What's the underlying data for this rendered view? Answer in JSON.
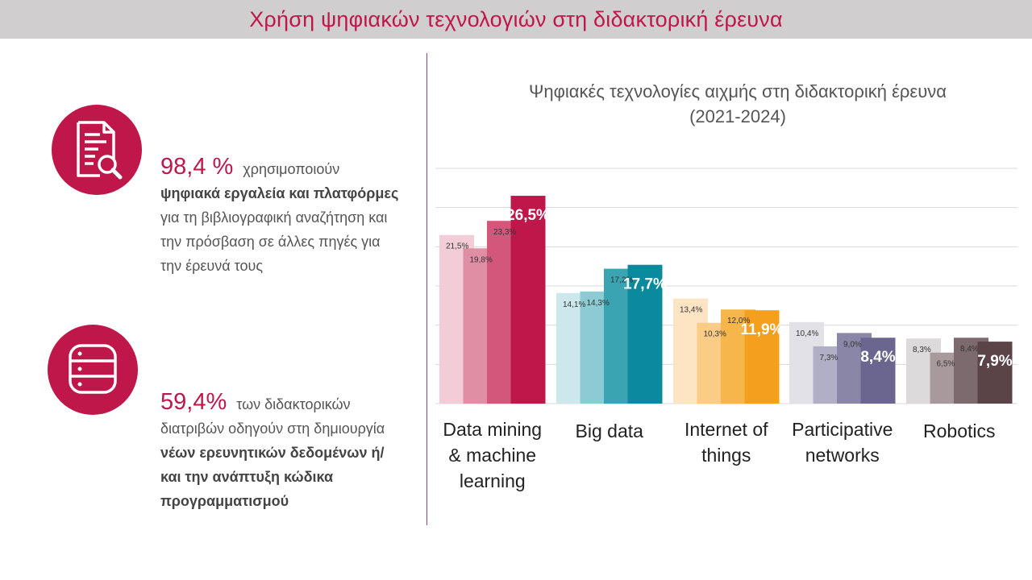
{
  "header": {
    "title": "Χρήση ψηφιακών τεχνολογιών στη διδακτορική έρευνα"
  },
  "stats": [
    {
      "icon": "document-search-icon",
      "value": "98,4 %",
      "parts": [
        {
          "text": "χρησιμοποιούν ",
          "bold": false
        },
        {
          "text": "ψηφιακά εργαλεία και πλατφόρμες",
          "bold": true
        },
        {
          "text": " για τη βιβλιογραφική αναζήτηση και την πρόσβαση σε άλλες πηγές για την έρευνά τους",
          "bold": false
        }
      ]
    },
    {
      "icon": "database-icon",
      "value": "59,4%",
      "parts": [
        {
          "text": "των διδακτορικών διατριβών οδηγούν στη δημιουργία ",
          "bold": false
        },
        {
          "text": "νέων ερευνητικών δεδομένων ή/και την ανάπτυξη κώδικα προγραμματισμού",
          "bold": true
        }
      ]
    }
  ],
  "chart_data": {
    "type": "bar",
    "title": "Ψηφιακές τεχνολογίες αιχμής στη διδακτορική έρευνα",
    "subtitle": "(2021-2024)",
    "categories": [
      "Data mining & machine learning",
      "Big data",
      "Internet of things",
      "Participative networks",
      "Robotics"
    ],
    "category_lines": [
      [
        "Data mining",
        "& machine",
        "learning"
      ],
      [
        "Big data"
      ],
      [
        "Internet of",
        "things"
      ],
      [
        "Participative",
        "networks"
      ],
      [
        "Robotics"
      ]
    ],
    "series": [
      {
        "values": [
          21.5,
          14.1,
          13.4,
          10.4,
          8.3
        ]
      },
      {
        "values": [
          19.8,
          14.3,
          10.3,
          7.3,
          6.5
        ]
      },
      {
        "values": [
          23.3,
          17.2,
          12.0,
          9.0,
          8.4
        ]
      },
      {
        "values": [
          26.5,
          17.7,
          11.9,
          8.4,
          7.9
        ]
      }
    ],
    "labels": [
      [
        "21,5%",
        "19,8%",
        "23,3%",
        "26,5%"
      ],
      [
        "14,1%",
        "14,3%",
        "17,2%",
        "17,7%"
      ],
      [
        "13,4%",
        "10,3%",
        "12,0%",
        "11,9%"
      ],
      [
        "10,4%",
        "7,3%",
        "9,0%",
        "8,4%"
      ],
      [
        "8,3%",
        "6,5%",
        "8,4%",
        "7,9%"
      ]
    ],
    "category_colors": [
      [
        "#f2cdd8",
        "#e08ea4",
        "#d3577a",
        "#c0174a"
      ],
      [
        "#cde8ec",
        "#8ccbd3",
        "#3aa4b2",
        "#0a8a9c"
      ],
      [
        "#fde5c4",
        "#fbcc85",
        "#f7b64b",
        "#f4a01e"
      ],
      [
        "#e2e1e8",
        "#b1afc6",
        "#8a86a8",
        "#6a6690"
      ],
      [
        "#dcdada",
        "#a89a9c",
        "#7d6a6e",
        "#5a4448"
      ]
    ],
    "ylim": [
      0,
      30
    ],
    "grid": true,
    "legend": "none"
  }
}
